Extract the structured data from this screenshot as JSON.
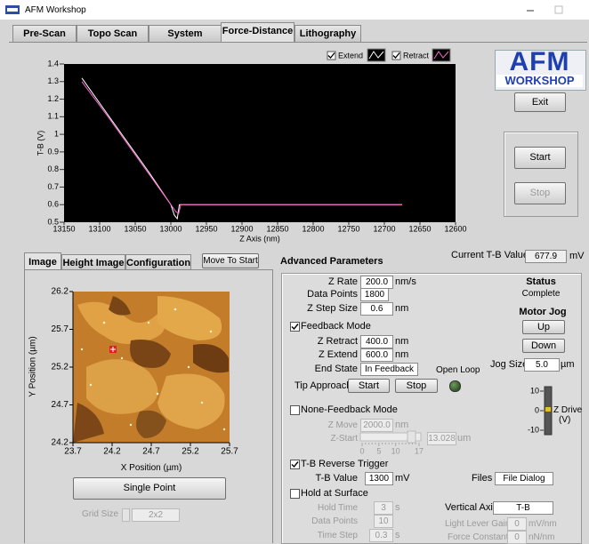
{
  "window": {
    "title": "AFM Workshop"
  },
  "tabs": [
    "Pre-Scan",
    "Topo Scan",
    "System",
    "Force-Distance",
    "Lithography"
  ],
  "plot": {
    "type": "line",
    "ylabel": "T-B (V)",
    "xlabel": "Z Axis (nm)",
    "xlim": [
      13150,
      12600
    ],
    "ylim": [
      0.5,
      1.4
    ],
    "xticks": [
      13150,
      13100,
      13050,
      13000,
      12950,
      12900,
      12850,
      12800,
      12750,
      12700,
      12650,
      12600
    ],
    "yticks": [
      0.5,
      0.6,
      0.7,
      0.8,
      0.9,
      1,
      1.1,
      1.2,
      1.3,
      1.4
    ],
    "series": [
      {
        "name": "Extend",
        "color": "#ffffff",
        "x": [
          13125,
          13090,
          13060,
          13030,
          13000,
          12995,
          12991,
          12988,
          12675
        ],
        "y": [
          1.32,
          1.12,
          0.95,
          0.78,
          0.6,
          0.54,
          0.52,
          0.6,
          0.6
        ]
      },
      {
        "name": "Retract",
        "color": "#ff66cc",
        "x": [
          13125,
          13090,
          13060,
          13030,
          13000,
          12993,
          12989,
          12986,
          12675
        ],
        "y": [
          1.3,
          1.11,
          0.94,
          0.77,
          0.6,
          0.56,
          0.55,
          0.6,
          0.6
        ]
      }
    ]
  },
  "logo": {
    "line1": "AFM",
    "line2": "WORKSHOP"
  },
  "buttons": {
    "exit": "Exit",
    "start": "Start",
    "stop": "Stop"
  },
  "image_panel": {
    "tabs": [
      "Image",
      "Height Image",
      "Configuration"
    ],
    "move_to_start": "Move To Start",
    "ylabel": "Y Position (µm)",
    "xlabel": "X Position (µm)",
    "xlim": [
      23.7,
      25.7
    ],
    "ylim": [
      24.2,
      26.2
    ],
    "xticks": [
      23.7,
      24.2,
      24.7,
      25.2,
      25.7
    ],
    "yticks": [
      26.2,
      25.7,
      25.2,
      24.7,
      24.2
    ],
    "single_point": "Single Point",
    "grid_size_label": "Grid Size",
    "grid_size": "2x2"
  },
  "current_tb": {
    "label": "Current T-B Value",
    "value": "677.9",
    "unit": "mV"
  },
  "advanced": {
    "title": "Advanced Parameters",
    "z_rate": {
      "label": "Z Rate",
      "value": "200.0",
      "unit": "nm/s"
    },
    "data_points": {
      "label": "Data Points",
      "value": "1800"
    },
    "z_step": {
      "label": "Z Step Size",
      "value": "0.6",
      "unit": "nm"
    },
    "feedback_mode": {
      "label": "Feedback Mode",
      "checked": true
    },
    "z_retract": {
      "label": "Z Retract",
      "value": "400.0",
      "unit": "nm"
    },
    "z_extend": {
      "label": "Z Extend",
      "value": "600.0",
      "unit": "nm"
    },
    "end_state": {
      "label": "End State",
      "value": "In Feedback"
    },
    "open_loop": "Open Loop",
    "tip_approach": {
      "label": "Tip Approach",
      "start": "Start",
      "stop": "Stop"
    },
    "status": {
      "label": "Status",
      "value": "Complete"
    },
    "motor_jog": {
      "label": "Motor Jog",
      "up": "Up",
      "down": "Down"
    },
    "jog_size": {
      "label": "Jog Size",
      "value": "5.0",
      "unit": "µm"
    },
    "z_drive": {
      "label": "Z Drive",
      "unit": "(V)",
      "lim": [
        -10,
        10
      ],
      "ticks": [
        10,
        0,
        -10
      ]
    },
    "none_feedback": {
      "label": "None-Feedback Mode",
      "checked": false
    },
    "z_move": {
      "label": "Z Move",
      "value": "2000.0",
      "unit": "nm"
    },
    "z_start": {
      "label": "Z-Start",
      "lim": [
        0,
        17
      ],
      "ticks": [
        0,
        5,
        10,
        17
      ],
      "value": "13.028",
      "unit": "um"
    },
    "tb_reverse": {
      "label": "T-B Reverse Trigger",
      "checked": true
    },
    "tb_value": {
      "label": "T-B Value",
      "value": "1300",
      "unit": "mV"
    },
    "files": {
      "label": "Files",
      "value": "File Dialog"
    },
    "hold_surface": {
      "label": "Hold at Surface",
      "checked": false
    },
    "hold_time": {
      "label": "Hold Time",
      "value": "3",
      "unit": "s"
    },
    "hold_points": {
      "label": "Data Points",
      "value": "10"
    },
    "time_step": {
      "label": "Time Step",
      "value": "0.3",
      "unit": "s"
    },
    "vertical_axis": {
      "label": "Vertical Axis",
      "value": "T-B"
    },
    "light_lever": {
      "label": "Light Lever Gain",
      "value": "0",
      "unit": "mV/nm"
    },
    "force_constant": {
      "label": "Force Constant",
      "value": "0",
      "unit": "nN/nm"
    }
  }
}
